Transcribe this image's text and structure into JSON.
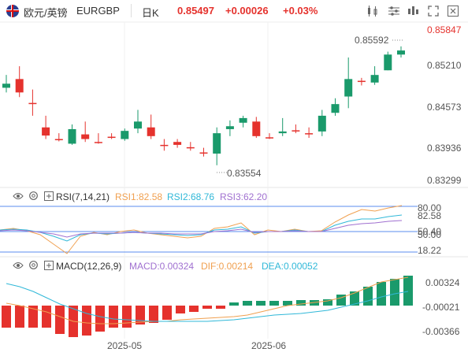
{
  "toolbar": {
    "pair_name": "欧元/英镑",
    "pair_code": "EURGBP",
    "period": "日K",
    "price": "0.85497",
    "change": "+0.00026",
    "change_pct": "+0.03%",
    "icons": [
      "chart-type-icon",
      "settings-icon",
      "indicator-icon",
      "fullscreen-icon",
      "close-icon"
    ]
  },
  "price_axis": [
    "0.85847",
    "0.85210",
    "0.84573",
    "0.83936",
    "0.83299"
  ],
  "annotations": {
    "high": "0.85592",
    "low": "0.83554"
  },
  "rsi": {
    "title": "RSI(7,14,21)",
    "rsi1": "RSI1:82.58",
    "rsi2": "RSI2:68.76",
    "rsi3": "RSI3:62.20",
    "axis": [
      "80.00",
      "82.58",
      "50.40",
      "50.00",
      "18.22"
    ]
  },
  "macd": {
    "title": "MACD(12,26,9)",
    "macd": "MACD:0.00324",
    "dif": "DIF:0.00214",
    "dea": "DEA:0.00052",
    "axis": [
      "0.00324",
      "-0.00021",
      "-0.00366"
    ]
  },
  "x_axis": [
    "2025-05",
    "2025-06"
  ],
  "colors": {
    "up": "#e5322d",
    "down": "#1a9a6b",
    "rsi1": "#f0a050",
    "rsi2": "#30b8d8",
    "rsi3": "#a070d0",
    "dif": "#f0a050",
    "dea": "#30b8d8"
  },
  "chart_data": {
    "type": "candlestick",
    "title": "",
    "ylim": [
      0.8325,
      0.859
    ],
    "candles": [
      {
        "o": 0.8488,
        "c": 0.8495,
        "h": 0.851,
        "l": 0.848
      },
      {
        "o": 0.8503,
        "c": 0.848,
        "h": 0.8525,
        "l": 0.8472
      },
      {
        "o": 0.8462,
        "c": 0.8462,
        "h": 0.8485,
        "l": 0.844
      },
      {
        "o": 0.842,
        "c": 0.8406,
        "h": 0.844,
        "l": 0.84
      },
      {
        "o": 0.84,
        "c": 0.84,
        "h": 0.841,
        "l": 0.8396
      },
      {
        "o": 0.8392,
        "c": 0.8417,
        "h": 0.8425,
        "l": 0.839
      },
      {
        "o": 0.8408,
        "c": 0.84,
        "h": 0.843,
        "l": 0.8395
      },
      {
        "o": 0.8395,
        "c": 0.8395,
        "h": 0.841,
        "l": 0.8392
      },
      {
        "o": 0.8404,
        "c": 0.8404,
        "h": 0.841,
        "l": 0.84
      },
      {
        "o": 0.84,
        "c": 0.8414,
        "h": 0.8418,
        "l": 0.8397
      },
      {
        "o": 0.8418,
        "c": 0.843,
        "h": 0.845,
        "l": 0.841
      },
      {
        "o": 0.842,
        "c": 0.8405,
        "h": 0.8442,
        "l": 0.84
      },
      {
        "o": 0.839,
        "c": 0.839,
        "h": 0.84,
        "l": 0.838
      },
      {
        "o": 0.8395,
        "c": 0.839,
        "h": 0.84,
        "l": 0.8385
      },
      {
        "o": 0.8386,
        "c": 0.8386,
        "h": 0.8395,
        "l": 0.838
      },
      {
        "o": 0.8377,
        "c": 0.8377,
        "h": 0.8385,
        "l": 0.837
      },
      {
        "o": 0.8375,
        "c": 0.841,
        "h": 0.842,
        "l": 0.8355
      },
      {
        "o": 0.8417,
        "c": 0.8422,
        "h": 0.8432,
        "l": 0.8405
      },
      {
        "o": 0.8428,
        "c": 0.8436,
        "h": 0.844,
        "l": 0.842
      },
      {
        "o": 0.843,
        "c": 0.8405,
        "h": 0.8438,
        "l": 0.8402
      },
      {
        "o": 0.8403,
        "c": 0.8403,
        "h": 0.841,
        "l": 0.84
      },
      {
        "o": 0.841,
        "c": 0.8413,
        "h": 0.8436,
        "l": 0.8405
      },
      {
        "o": 0.8415,
        "c": 0.8415,
        "h": 0.8425,
        "l": 0.841
      },
      {
        "o": 0.841,
        "c": 0.841,
        "h": 0.842,
        "l": 0.8402
      },
      {
        "o": 0.8413,
        "c": 0.844,
        "h": 0.845,
        "l": 0.8405
      },
      {
        "o": 0.8445,
        "c": 0.846,
        "h": 0.847,
        "l": 0.844
      },
      {
        "o": 0.8473,
        "c": 0.8503,
        "h": 0.854,
        "l": 0.8453
      },
      {
        "o": 0.85,
        "c": 0.85,
        "h": 0.8505,
        "l": 0.8492
      },
      {
        "o": 0.8497,
        "c": 0.851,
        "h": 0.8525,
        "l": 0.8493
      },
      {
        "o": 0.8518,
        "c": 0.8545,
        "h": 0.855,
        "l": 0.8518
      },
      {
        "o": 0.8545,
        "c": 0.8552,
        "h": 0.8559,
        "l": 0.854
      }
    ]
  }
}
